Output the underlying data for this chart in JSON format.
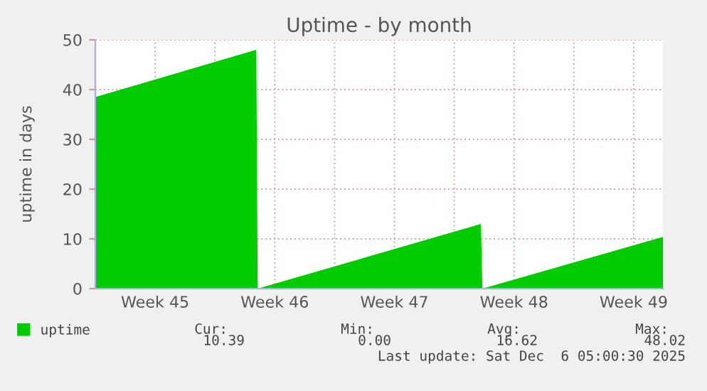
{
  "chart_data": {
    "type": "area",
    "title": "Uptime - by month",
    "ylabel": "uptime in days",
    "x": [
      "2025-11-03T00:00",
      "2025-11-12T10:00",
      "2025-11-12T12:00",
      "2025-11-25T13:30",
      "2025-11-25T15:30",
      "2025-12-06T05:00"
    ],
    "series": [
      {
        "name": "uptime",
        "color": "#00cc00",
        "values": [
          38.5,
          48,
          0,
          13,
          0,
          10.4
        ]
      }
    ],
    "xlim": [
      "2025-11-03T00:00",
      "2025-12-06T05:00"
    ],
    "xticks": [
      {
        "value": "2025-11-03T00:00",
        "label": null
      },
      {
        "value": "2025-11-06T12:00",
        "label": "Week 45"
      },
      {
        "value": "2025-11-10T00:00",
        "label": null
      },
      {
        "value": "2025-11-13T12:00",
        "label": "Week 46"
      },
      {
        "value": "2025-11-17T00:00",
        "label": null
      },
      {
        "value": "2025-11-20T12:00",
        "label": "Week 47"
      },
      {
        "value": "2025-11-24T00:00",
        "label": null
      },
      {
        "value": "2025-11-27T12:00",
        "label": "Week 48"
      },
      {
        "value": "2025-12-01T00:00",
        "label": null
      },
      {
        "value": "2025-12-04T12:00",
        "label": "Week 49"
      }
    ],
    "ylim": [
      0,
      50
    ],
    "yticks": [
      0,
      10,
      20,
      30,
      40,
      50
    ],
    "grid": true,
    "legend": "bottom left",
    "annotations": [
      "Cur:",
      "Min:",
      "Avg:",
      "Max:",
      "10.39",
      "0.00",
      "16.62",
      "48.02",
      "Last update: Sat Dec  6 05:00:30 2025"
    ]
  }
}
